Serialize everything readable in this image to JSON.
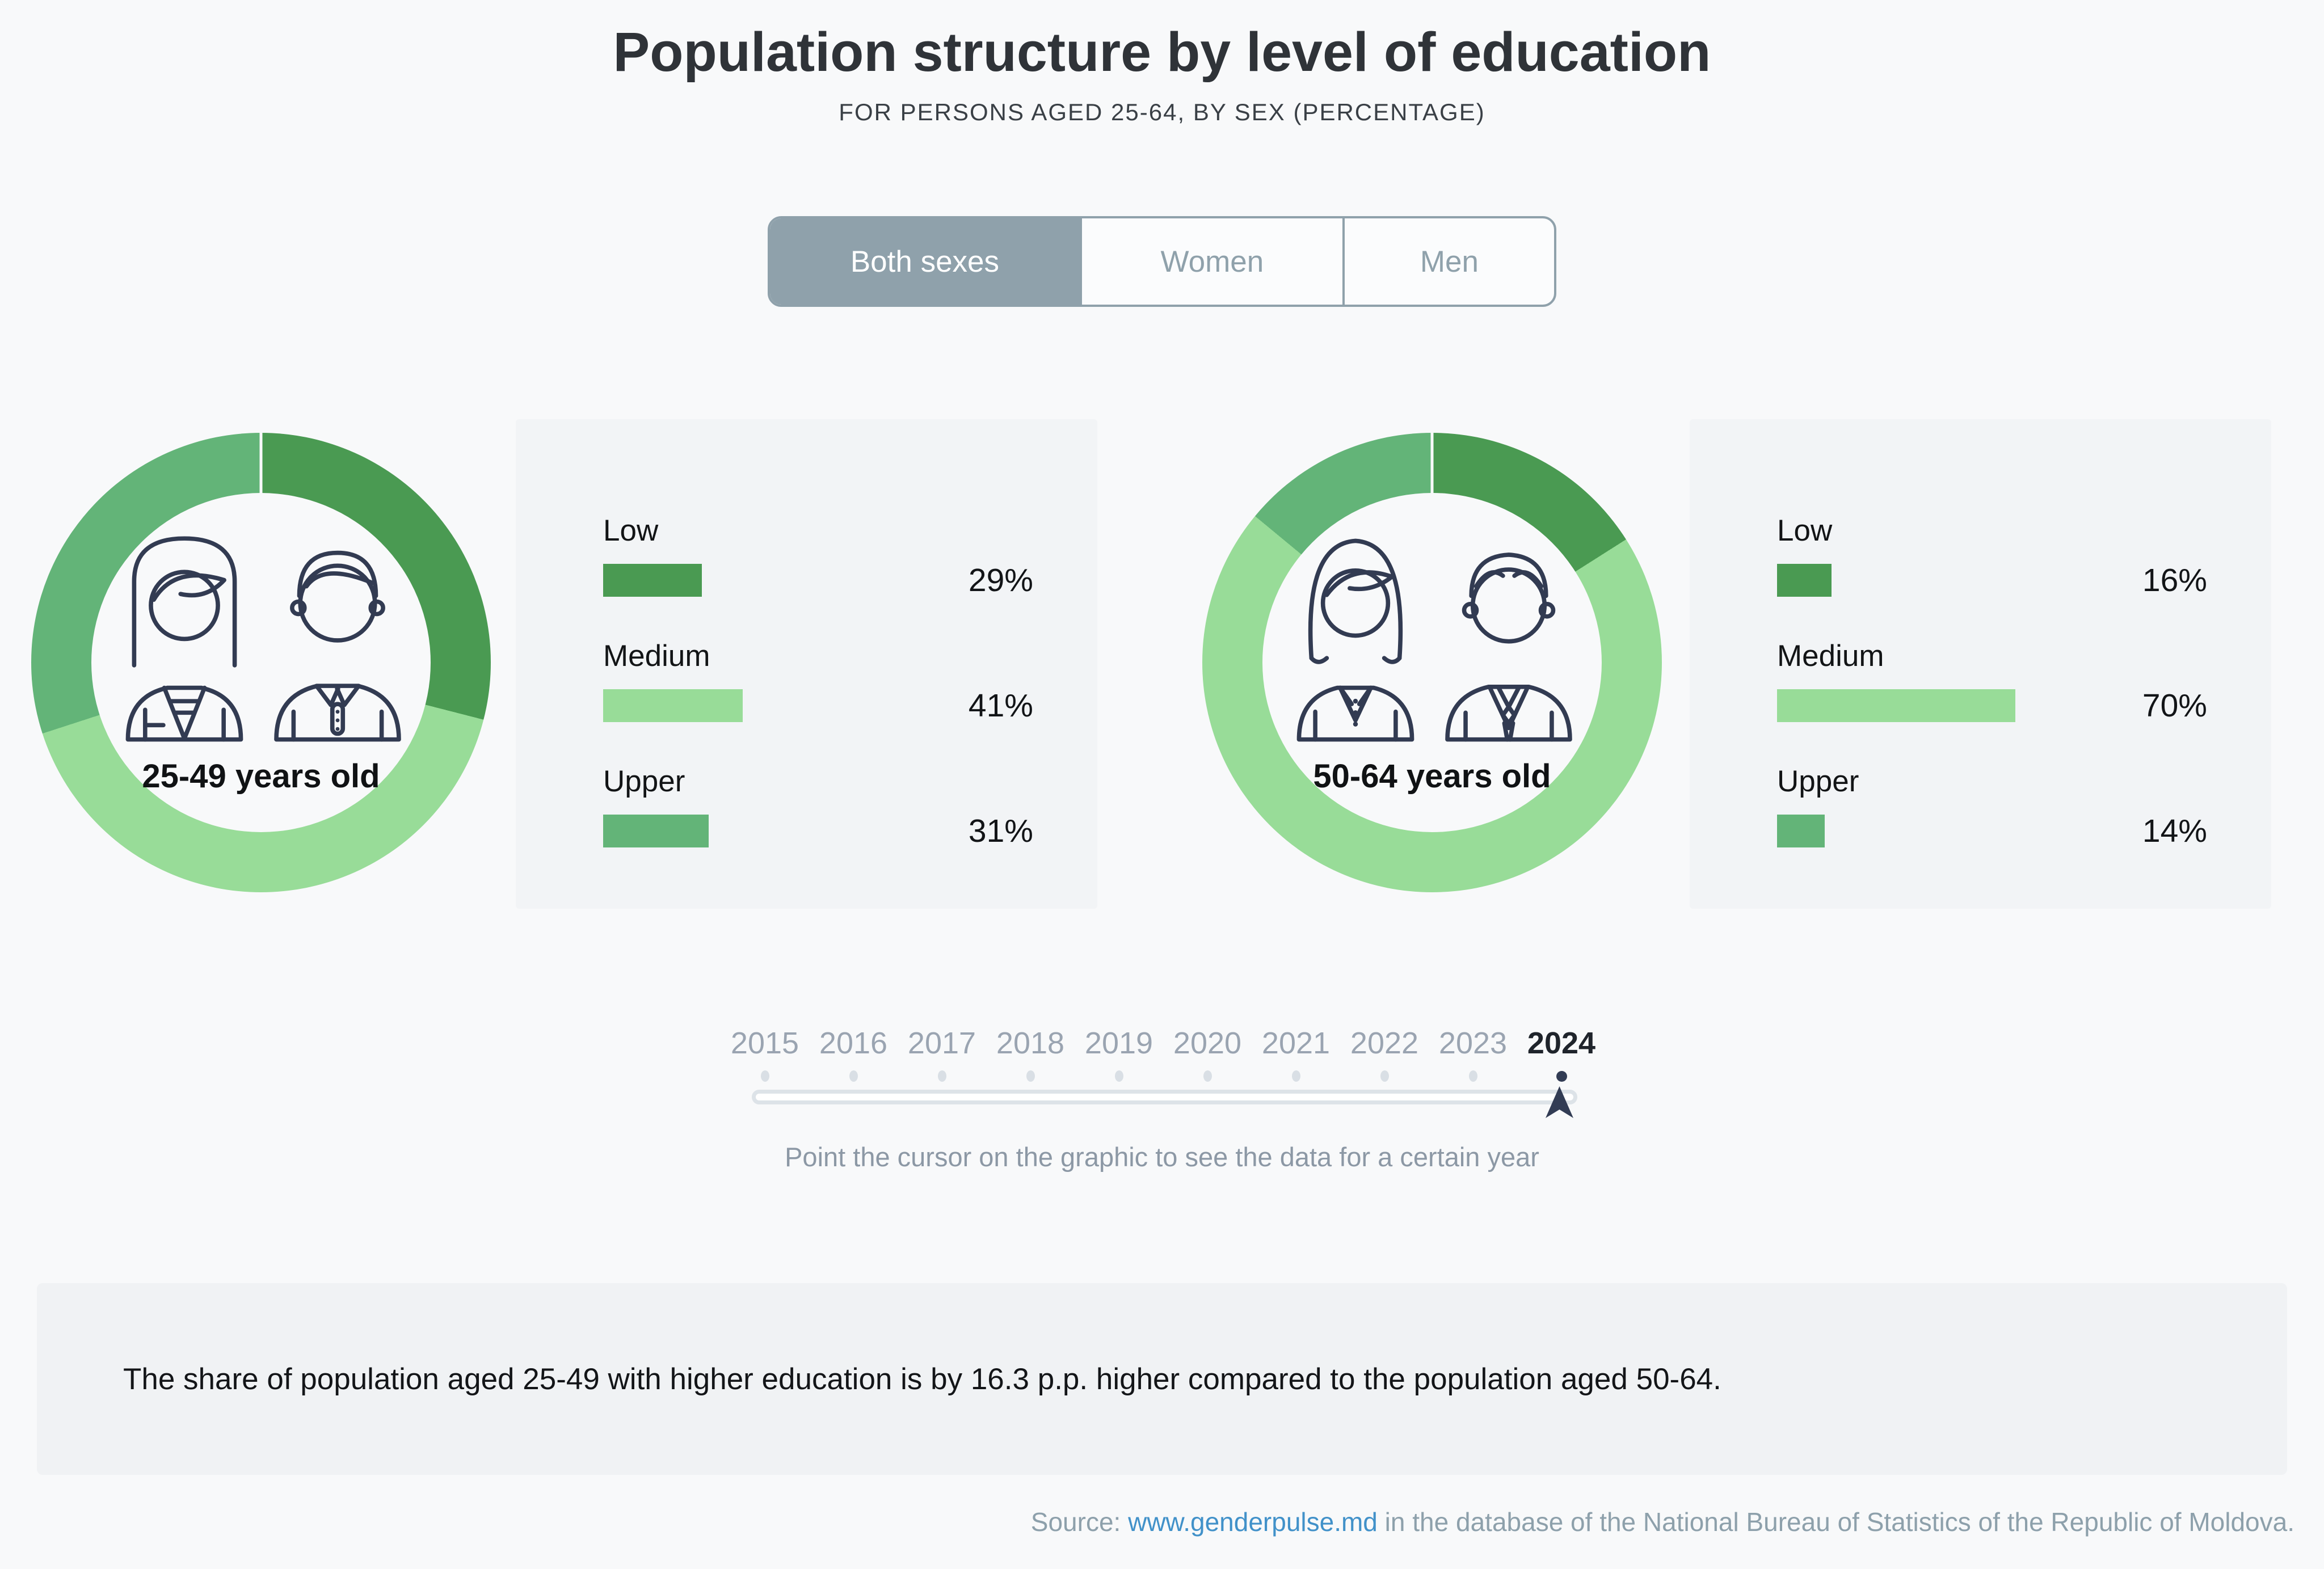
{
  "header": {
    "title": "Population structure by level of education",
    "subtitle": "FOR PERSONS AGED 25-64, BY SEX (PERCENTAGE)"
  },
  "tabs": [
    {
      "label": "Both sexes",
      "active": true
    },
    {
      "label": "Women",
      "active": false
    },
    {
      "label": "Men",
      "active": false
    }
  ],
  "chart_data": [
    {
      "type": "pie",
      "title": "25-49 years old",
      "categories": [
        "Low",
        "Medium",
        "Upper"
      ],
      "values": [
        29,
        41,
        31
      ],
      "value_labels": [
        "29%",
        "41%",
        "31%"
      ],
      "unit": "%",
      "colors": [
        "#4a9a52",
        "#98dc98",
        "#63b478"
      ],
      "legend_position": "bars-right-of-donut"
    },
    {
      "type": "pie",
      "title": "50-64 years old",
      "categories": [
        "Low",
        "Medium",
        "Upper"
      ],
      "values": [
        16,
        70,
        14
      ],
      "value_labels": [
        "16%",
        "70%",
        "14%"
      ],
      "unit": "%",
      "colors": [
        "#4a9a52",
        "#98dc98",
        "#63b478"
      ],
      "legend_position": "bars-right-of-donut"
    }
  ],
  "slider": {
    "years": [
      "2015",
      "2016",
      "2017",
      "2018",
      "2019",
      "2020",
      "2021",
      "2022",
      "2023",
      "2024"
    ],
    "selected_year": "2024",
    "hint": "Point the cursor on the graphic to see the data for a certain year"
  },
  "note": "The share of population aged 25-49 with higher education is by 16.3 p.p. higher compared to the population aged 50-64.",
  "source": {
    "prefix": "Source: ",
    "link": "www.genderpulse.md",
    "suffix": " in the database of the National Bureau of Statistics of the Republic of Moldova."
  },
  "colors": {
    "low_green": "#4a9a52",
    "medium_green": "#98dc98",
    "upper_green": "#63b478",
    "slate": "#8fa1ab",
    "navy": "#323b52",
    "link_blue": "#4191c9",
    "year_gray": "#9aa4b1",
    "background": "#f8f9fa",
    "panel_background": "#f2f4f6"
  }
}
